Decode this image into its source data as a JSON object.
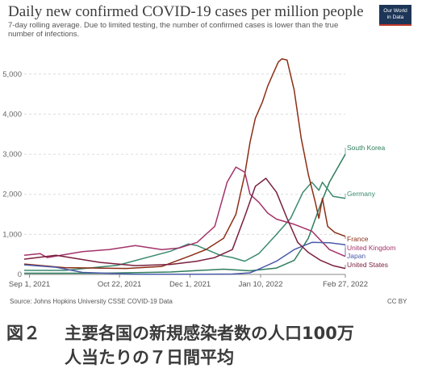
{
  "title": "Daily new confirmed COVID-19 cases per million people",
  "subtitle": "7-day rolling average. Due to limited testing, the number of confirmed cases is lower than the true number of infections.",
  "logo": {
    "line1": "Our World",
    "line2": "in Data"
  },
  "source": "Source: Johns Hopkins University CSSE COVID-19 Data",
  "license": "CC BY",
  "caption": {
    "figure_label": "図２",
    "line1": "主要各国の新規感染者数の人口100万",
    "line2": "人当たりの７日間平均"
  },
  "chart_data": {
    "type": "line",
    "title": "Daily new confirmed COVID-19 cases per million people",
    "subtitle": "7-day rolling average. Due to limited testing, the number of confirmed cases is lower than the true number of infections.",
    "xlabel": "",
    "ylabel": "",
    "x_ticks": [
      {
        "day": 0,
        "label": "Sep 1, 2021"
      },
      {
        "day": 51,
        "label": "Oct 22, 2021"
      },
      {
        "day": 91,
        "label": "Dec 1, 2021"
      },
      {
        "day": 131,
        "label": "Jan 10, 2022"
      },
      {
        "day": 179,
        "label": "Feb 27, 2022"
      }
    ],
    "xlim": [
      -3,
      179
    ],
    "ylim": [
      0,
      5600
    ],
    "y_ticks": [
      {
        "value": 0,
        "label": "0"
      },
      {
        "value": 1000,
        "label": "1,000"
      },
      {
        "value": 2000,
        "label": "2,000"
      },
      {
        "value": 3000,
        "label": "3,000"
      },
      {
        "value": 4000,
        "label": "4,000"
      },
      {
        "value": 5000,
        "label": "5,000"
      }
    ],
    "grid": true,
    "series": [
      {
        "name": "South Korea",
        "color": "#2e7d5b",
        "x": [
          -3,
          40,
          80,
          110,
          125,
          140,
          150,
          158,
          165,
          170,
          179
        ],
        "y": [
          30,
          30,
          60,
          130,
          90,
          160,
          350,
          900,
          1750,
          2300,
          3000
        ]
      },
      {
        "name": "Germany",
        "color": "#3a8a6e",
        "x": [
          -3,
          20,
          50,
          80,
          90,
          95,
          108,
          115,
          122,
          130,
          140,
          148,
          155,
          160,
          164,
          166,
          172,
          179
        ],
        "y": [
          100,
          100,
          230,
          580,
          760,
          720,
          480,
          420,
          330,
          520,
          1000,
          1400,
          2050,
          2300,
          2100,
          2300,
          1950,
          1900
        ]
      },
      {
        "name": "France",
        "color": "#8b2e16",
        "x": [
          -3,
          20,
          55,
          75,
          92,
          100,
          110,
          117,
          122,
          125,
          128,
          132,
          135,
          138,
          141,
          143,
          146,
          150,
          154,
          158,
          162,
          164,
          166,
          169,
          173,
          179
        ],
        "y": [
          260,
          170,
          150,
          200,
          480,
          620,
          900,
          1500,
          2500,
          3300,
          3900,
          4300,
          4700,
          5000,
          5300,
          5380,
          5350,
          4600,
          3400,
          2500,
          1800,
          1400,
          1900,
          1200,
          1050,
          950
        ]
      },
      {
        "name": "United Kingdom",
        "color": "#a3336a",
        "x": [
          -3,
          6,
          10,
          30,
          45,
          60,
          75,
          85,
          95,
          105,
          112,
          117,
          122,
          125,
          130,
          135,
          140,
          150,
          160,
          170,
          179
        ],
        "y": [
          480,
          520,
          420,
          570,
          620,
          720,
          620,
          660,
          800,
          1200,
          2300,
          2680,
          2550,
          2000,
          1800,
          1530,
          1380,
          1250,
          1080,
          620,
          450
        ]
      },
      {
        "name": "Japan",
        "color": "#4a5aa8",
        "x": [
          -3,
          15,
          30,
          60,
          95,
          115,
          125,
          130,
          140,
          150,
          160,
          170,
          179
        ],
        "y": [
          240,
          180,
          50,
          5,
          5,
          10,
          40,
          130,
          330,
          620,
          800,
          790,
          740
        ]
      },
      {
        "name": "United States",
        "color": "#7a1f3d",
        "x": [
          -3,
          15,
          40,
          60,
          80,
          95,
          105,
          115,
          122,
          128,
          134,
          140,
          146,
          152,
          158,
          165,
          172,
          179
        ],
        "y": [
          380,
          480,
          300,
          220,
          250,
          330,
          420,
          620,
          1450,
          2200,
          2400,
          2050,
          1400,
          800,
          550,
          350,
          220,
          150
        ]
      }
    ]
  }
}
